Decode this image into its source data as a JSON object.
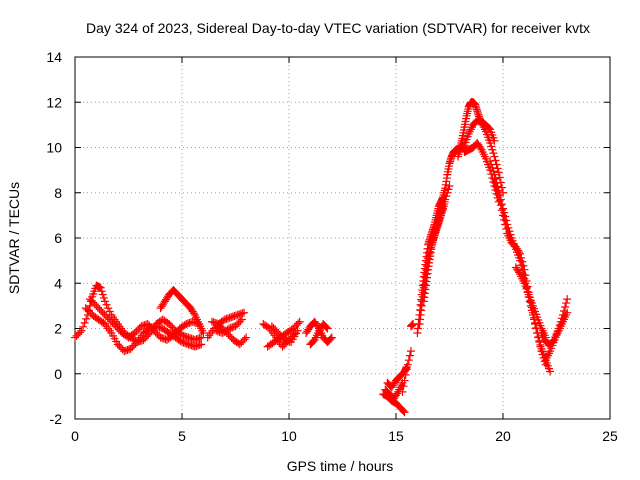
{
  "chart_data": {
    "type": "scatter",
    "title": "Day 324 of 2023, Sidereal Day-to-day VTEC variation (SDTVAR) for receiver kvtx",
    "xlabel": "GPS time / hours",
    "ylabel": "SDTVAR / TECUs",
    "xlim": [
      0,
      25
    ],
    "ylim": [
      -2,
      14
    ],
    "xticks": [
      0,
      5,
      10,
      15,
      20,
      25
    ],
    "yticks": [
      -2,
      0,
      2,
      4,
      6,
      8,
      10,
      12,
      14
    ],
    "grid": true,
    "marker": "+",
    "series_color": "#ff0000",
    "series": [
      {
        "name": "SDTVAR",
        "segments": [
          {
            "x": [
              0.0,
              0.3,
              0.6,
              0.8,
              1.0,
              1.2,
              1.4,
              1.7,
              2.0,
              2.3,
              2.6,
              2.9,
              3.2,
              3.5,
              3.8,
              4.1,
              4.4,
              4.7,
              5.0,
              5.3,
              5.6,
              5.9
            ],
            "y": [
              1.6,
              1.9,
              2.6,
              3.4,
              3.9,
              3.8,
              3.2,
              2.6,
              2.2,
              1.8,
              1.6,
              1.4,
              1.5,
              1.8,
              2.2,
              2.4,
              2.2,
              1.9,
              1.7,
              1.6,
              1.5,
              1.6
            ]
          },
          {
            "x": [
              0.5,
              0.8,
              1.1,
              1.4,
              1.7,
              2.0,
              2.3,
              2.6,
              2.9,
              3.2,
              3.5,
              3.8,
              4.1,
              4.4,
              4.7,
              5.0,
              5.3,
              5.6,
              5.9
            ],
            "y": [
              2.9,
              2.6,
              2.4,
              2.2,
              1.8,
              1.3,
              1.0,
              1.1,
              1.4,
              1.8,
              2.0,
              2.1,
              2.0,
              1.8,
              1.6,
              1.4,
              1.3,
              1.2,
              1.3
            ]
          },
          {
            "x": [
              0.7,
              1.0,
              1.3,
              1.6,
              1.9,
              2.2,
              2.5,
              2.8,
              3.1,
              3.4,
              3.7,
              4.0,
              4.3,
              4.6,
              4.9,
              5.2,
              5.5,
              5.8
            ],
            "y": [
              3.3,
              3.0,
              2.7,
              2.4,
              2.1,
              1.8,
              1.6,
              1.8,
              2.1,
              2.2,
              1.9,
              1.6,
              1.5,
              1.7,
              2.0,
              2.2,
              2.3,
              2.2
            ]
          },
          {
            "x": [
              4.0,
              4.2,
              4.4,
              4.6,
              4.8,
              5.0,
              5.2,
              5.4,
              5.6,
              5.8,
              6.0
            ],
            "y": [
              2.9,
              3.2,
              3.5,
              3.7,
              3.5,
              3.3,
              3.1,
              2.9,
              2.6,
              2.2,
              1.8
            ]
          },
          {
            "x": [
              6.2,
              6.5,
              6.8,
              7.1,
              7.4,
              7.7,
              8.0
            ],
            "y": [
              1.6,
              2.0,
              2.1,
              1.8,
              1.5,
              1.3,
              1.6
            ]
          },
          {
            "x": [
              6.4,
              6.7,
              7.0,
              7.3,
              7.6,
              7.9
            ],
            "y": [
              2.3,
              2.2,
              2.4,
              2.5,
              2.6,
              2.7
            ]
          },
          {
            "x": [
              6.6,
              6.9,
              7.2,
              7.5,
              7.8
            ],
            "y": [
              1.9,
              1.8,
              2.0,
              2.1,
              2.4
            ]
          },
          {
            "x": [
              8.8,
              9.1,
              9.4,
              9.7,
              10.0,
              10.3
            ],
            "y": [
              2.2,
              2.0,
              1.6,
              1.2,
              1.5,
              1.8
            ]
          },
          {
            "x": [
              9.0,
              9.3,
              9.6,
              9.9,
              10.2,
              10.5
            ],
            "y": [
              1.2,
              1.4,
              1.6,
              1.8,
              2.0,
              2.3
            ]
          },
          {
            "x": [
              9.2,
              9.5,
              9.8,
              10.1,
              10.4
            ],
            "y": [
              2.1,
              1.8,
              1.5,
              1.4,
              1.9
            ]
          },
          {
            "x": [
              10.8,
              11.0,
              11.2,
              11.4,
              11.6,
              11.8,
              12.0
            ],
            "y": [
              1.8,
              2.1,
              2.3,
              2.0,
              1.6,
              1.4,
              1.6
            ]
          },
          {
            "x": [
              11.0,
              11.2,
              11.4,
              11.6,
              11.8
            ],
            "y": [
              1.3,
              1.5,
              1.9,
              2.2,
              2.0
            ]
          },
          {
            "x": [
              14.4,
              14.6,
              14.8,
              15.0,
              15.2,
              15.4
            ],
            "y": [
              -0.9,
              -1.0,
              -1.2,
              -1.3,
              -1.5,
              -1.7
            ]
          },
          {
            "x": [
              14.6,
              14.8,
              15.0,
              15.2,
              15.4,
              15.5
            ],
            "y": [
              -0.4,
              -0.6,
              -0.3,
              -0.1,
              0.1,
              0.3
            ]
          },
          {
            "x": [
              14.5,
              14.7,
              14.9,
              15.1,
              15.3
            ],
            "y": [
              -0.7,
              -0.9,
              -1.1,
              -0.8,
              -0.4
            ]
          },
          {
            "x": [
              15.3,
              15.5,
              15.7
            ],
            "y": [
              -0.8,
              0.2,
              1.0
            ]
          },
          {
            "x": [
              15.7,
              15.8
            ],
            "y": [
              2.1,
              2.2
            ]
          },
          {
            "x": [
              16.0,
              16.1,
              16.2,
              16.3,
              16.4,
              16.5,
              16.6,
              16.7,
              16.8,
              16.9,
              17.0,
              17.1,
              17.2,
              17.3,
              17.4,
              17.5,
              17.6,
              17.7,
              17.8,
              18.0
            ],
            "y": [
              1.8,
              2.6,
              3.5,
              4.3,
              5.0,
              5.7,
              6.0,
              6.3,
              6.6,
              7.0,
              7.4,
              7.6,
              7.8,
              8.2,
              8.8,
              9.3,
              9.6,
              9.8,
              9.9,
              10.0
            ]
          },
          {
            "x": [
              16.1,
              16.2,
              16.3,
              16.4,
              16.5,
              16.6,
              16.7,
              16.8,
              16.9,
              17.0,
              17.1,
              17.2,
              17.3,
              17.5
            ],
            "y": [
              2.2,
              3.0,
              3.8,
              4.4,
              5.1,
              5.5,
              5.8,
              6.1,
              6.4,
              6.7,
              7.0,
              7.3,
              7.7,
              8.3
            ]
          },
          {
            "x": [
              16.3,
              16.4,
              16.5,
              16.6,
              16.7,
              16.8,
              16.9,
              17.0,
              17.1,
              17.2
            ],
            "y": [
              3.2,
              3.9,
              4.6,
              5.2,
              5.8,
              6.2,
              6.5,
              6.8,
              7.2,
              7.5
            ]
          },
          {
            "x": [
              17.9,
              18.0,
              18.1,
              18.2,
              18.3,
              18.4,
              18.5,
              18.6,
              18.7,
              18.8,
              18.9,
              19.0,
              19.2,
              19.4,
              19.6
            ],
            "y": [
              9.6,
              10.0,
              10.4,
              10.9,
              11.4,
              11.8,
              12.0,
              12.0,
              11.9,
              11.6,
              11.3,
              11.1,
              11.0,
              10.8,
              10.3
            ]
          },
          {
            "x": [
              18.0,
              18.2,
              18.4,
              18.6,
              18.8,
              19.0,
              19.2,
              19.4,
              19.6,
              19.8,
              20.0
            ],
            "y": [
              9.9,
              10.1,
              10.6,
              11.0,
              11.2,
              11.1,
              10.7,
              10.2,
              9.6,
              8.9,
              8.0
            ]
          },
          {
            "x": [
              18.2,
              18.4,
              18.6,
              18.8,
              19.0,
              19.2,
              19.4,
              19.6,
              19.8
            ],
            "y": [
              9.8,
              9.9,
              10.0,
              10.2,
              9.9,
              9.5,
              9.0,
              8.3,
              7.6
            ]
          },
          {
            "x": [
              19.4,
              19.6,
              19.8,
              20.0,
              20.2,
              20.4,
              20.6,
              20.8,
              21.0,
              21.2,
              21.4,
              21.6,
              21.8,
              22.0
            ],
            "y": [
              9.4,
              8.8,
              8.1,
              7.3,
              6.6,
              6.0,
              5.5,
              5.0,
              4.2,
              3.4,
              2.6,
              1.8,
              1.0,
              0.4
            ]
          },
          {
            "x": [
              19.6,
              19.8,
              20.0,
              20.2,
              20.4,
              20.6,
              20.8,
              21.0,
              21.2,
              21.4,
              21.6,
              21.8,
              22.0,
              22.2
            ],
            "y": [
              8.6,
              7.9,
              7.0,
              6.2,
              5.8,
              5.6,
              5.3,
              4.6,
              3.6,
              2.7,
              1.8,
              1.1,
              0.6,
              0.1
            ]
          },
          {
            "x": [
              20.6,
              20.8,
              21.0,
              21.2,
              21.4,
              21.6,
              21.8,
              22.0
            ],
            "y": [
              4.7,
              4.4,
              4.0,
              3.5,
              3.0,
              2.5,
              2.0,
              1.6
            ]
          },
          {
            "x": [
              22.0,
              22.2,
              22.4,
              22.6,
              22.8,
              23.0
            ],
            "y": [
              0.6,
              1.0,
              1.5,
              2.0,
              2.6,
              3.3
            ]
          },
          {
            "x": [
              21.8,
              22.0,
              22.2,
              22.4,
              22.6,
              22.8,
              23.0
            ],
            "y": [
              1.8,
              1.4,
              1.3,
              1.5,
              1.9,
              2.3,
              2.7
            ]
          }
        ]
      }
    ]
  }
}
